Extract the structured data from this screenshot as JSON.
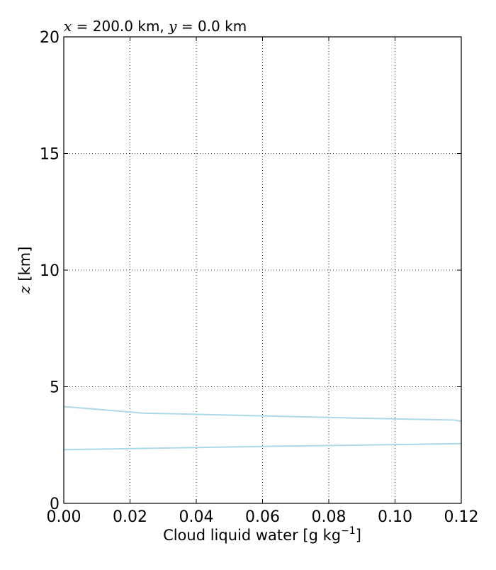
{
  "chart_data": {
    "type": "line",
    "title": {
      "x_symbol": "x",
      "x_text": " = 200.0 km, ",
      "y_symbol": "y",
      "y_text": " = 0.0 km"
    },
    "xlabel": {
      "text": "Cloud liquid water [g kg",
      "superscript": "−1",
      "suffix": "]"
    },
    "ylabel": {
      "symbol": "z",
      "text": " [km]"
    },
    "xlim": [
      0.0,
      0.12
    ],
    "ylim": [
      0,
      20
    ],
    "xticks": [
      0.0,
      0.02,
      0.04,
      0.06,
      0.08,
      0.1,
      0.12
    ],
    "xtick_labels": [
      "0.00",
      "0.02",
      "0.04",
      "0.06",
      "0.08",
      "0.10",
      "0.12"
    ],
    "yticks": [
      0,
      5,
      10,
      15,
      20
    ],
    "ytick_labels": [
      "0",
      "5",
      "10",
      "15",
      "20"
    ],
    "grid": true,
    "grid_style": "dotted",
    "series_color": "#add8e6",
    "series": [
      {
        "x": [
          0.0,
          0.024,
          0.06,
          0.09,
          0.118,
          0.12
        ],
        "y": [
          4.15,
          3.87,
          3.75,
          3.65,
          3.57,
          3.52
        ]
      },
      {
        "x": [
          0.0,
          0.03,
          0.06,
          0.09,
          0.12
        ],
        "y": [
          2.3,
          2.37,
          2.44,
          2.5,
          2.56
        ]
      }
    ]
  }
}
